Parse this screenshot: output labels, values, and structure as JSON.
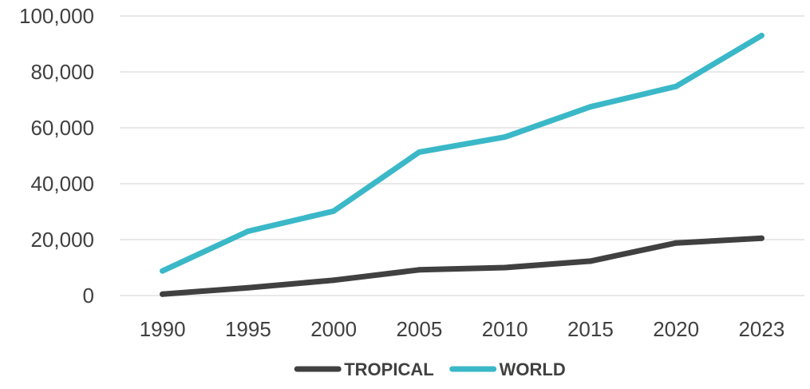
{
  "chart_data": {
    "type": "line",
    "x": [
      "1990",
      "1995",
      "2000",
      "2005",
      "2010",
      "2015",
      "2020",
      "2023"
    ],
    "series": [
      {
        "name": "TROPICAL",
        "color": "#404040",
        "values": [
          500,
          2800,
          5500,
          9200,
          10000,
          12300,
          18800,
          20500
        ]
      },
      {
        "name": "WORLD",
        "color": "#3AB8C8",
        "values": [
          8800,
          23000,
          30200,
          51300,
          56700,
          67500,
          74800,
          93000
        ]
      }
    ],
    "y_ticks": [
      "0",
      "20,000",
      "40,000",
      "60,000",
      "80,000",
      "100,000"
    ],
    "ylim": [
      0,
      100000
    ],
    "grid": true,
    "legend_position": "bottom-center",
    "title": "",
    "xlabel": "",
    "ylabel": ""
  }
}
